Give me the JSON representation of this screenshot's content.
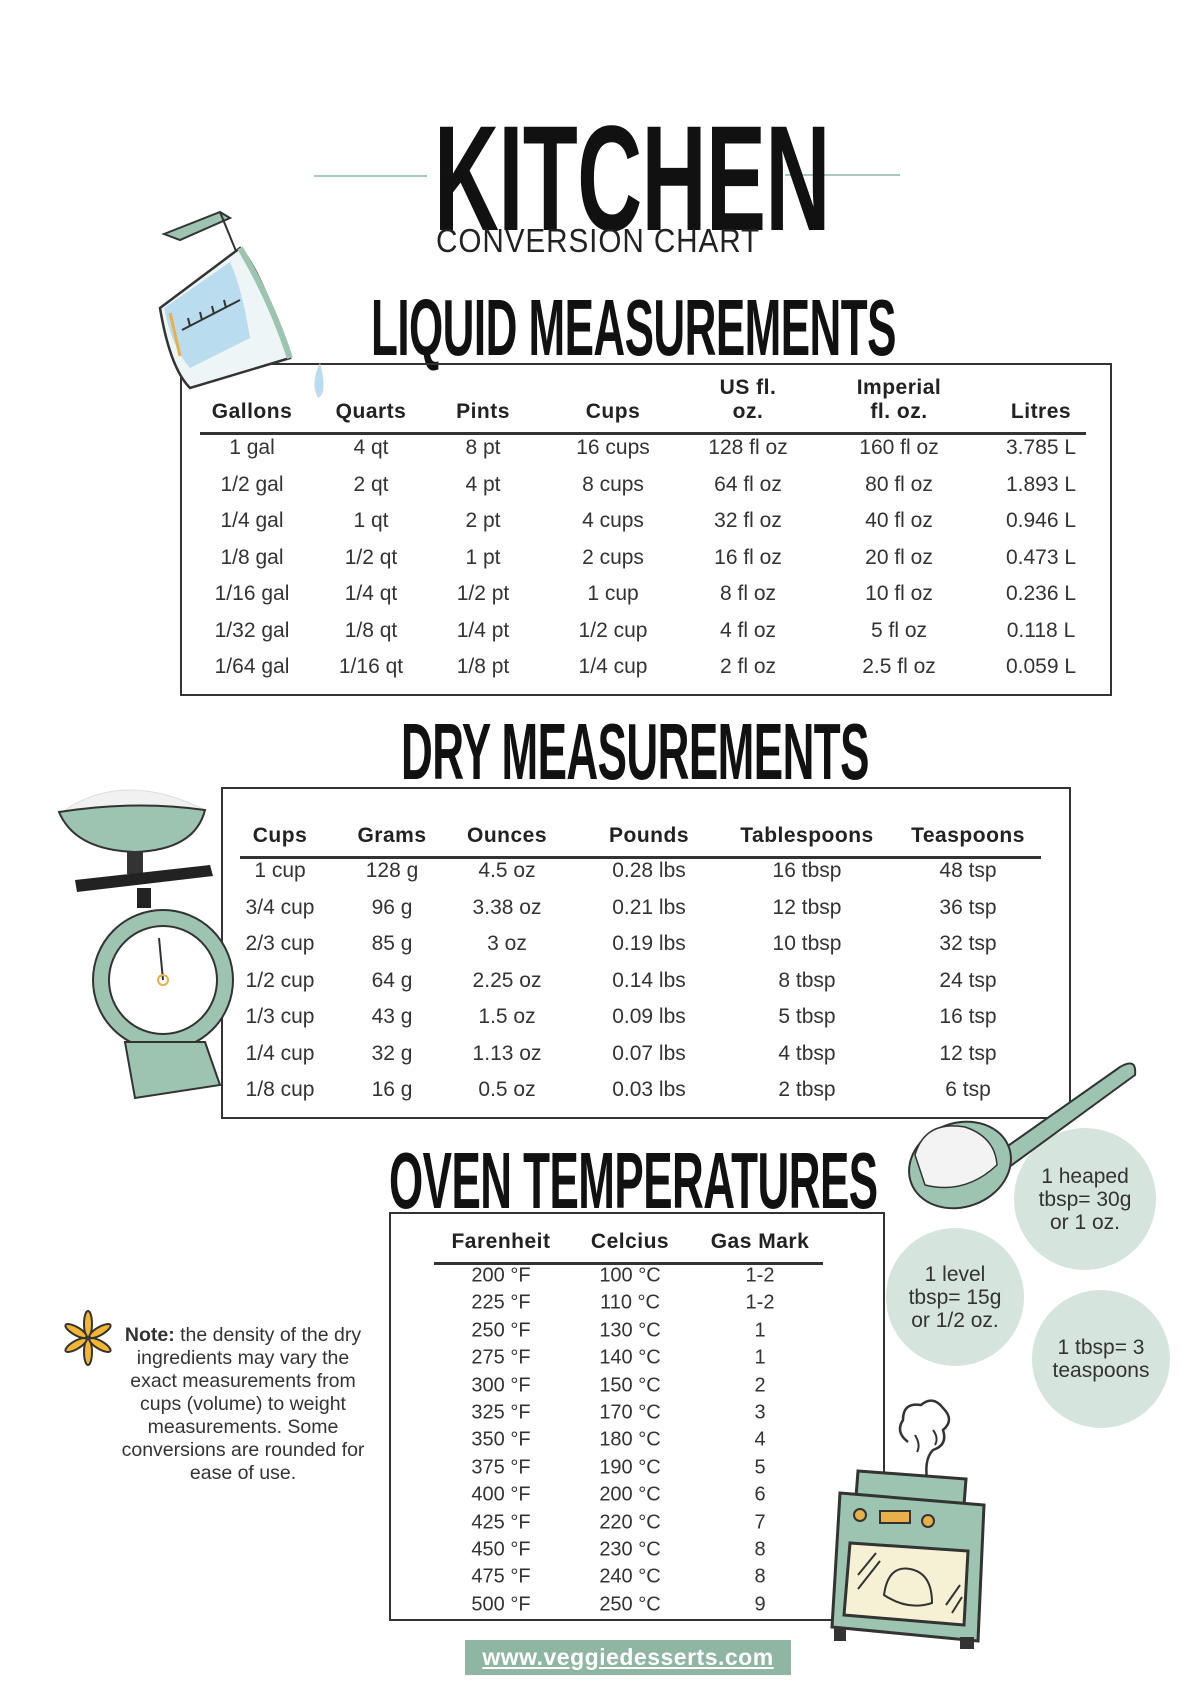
{
  "title": {
    "main": "KITCHEN",
    "sub": "CONVERSION CHART"
  },
  "liquid": {
    "heading": "LIQUID MEASUREMENTS",
    "columns": [
      "Gallons",
      "Quarts",
      "Pints",
      "Cups",
      "US fl.\noz.",
      "Imperial\nfl. oz.",
      "Litres"
    ],
    "rows": [
      [
        "1 gal",
        "4 qt",
        "8 pt",
        "16 cups",
        "128 fl oz",
        "160 fl oz",
        "3.785 L"
      ],
      [
        "1/2 gal",
        "2 qt",
        "4 pt",
        "8 cups",
        "64 fl oz",
        "80 fl oz",
        "1.893 L"
      ],
      [
        "1/4 gal",
        "1 qt",
        "2 pt",
        "4 cups",
        "32 fl oz",
        "40 fl oz",
        "0.946 L"
      ],
      [
        "1/8 gal",
        "1/2 qt",
        "1 pt",
        "2 cups",
        "16 fl oz",
        "20 fl oz",
        "0.473 L"
      ],
      [
        "1/16 gal",
        "1/4 qt",
        "1/2 pt",
        "1 cup",
        "8 fl oz",
        "10 fl oz",
        "0.236 L"
      ],
      [
        "1/32 gal",
        "1/8 qt",
        "1/4 pt",
        "1/2 cup",
        "4 fl oz",
        "5 fl oz",
        "0.118 L"
      ],
      [
        "1/64 gal",
        "1/16 qt",
        "1/8 pt",
        "1/4 cup",
        "2 fl oz",
        "2.5 fl oz",
        "0.059 L"
      ]
    ]
  },
  "dry": {
    "heading": "DRY MEASUREMENTS",
    "columns": [
      "Cups",
      "Grams",
      "Ounces",
      "Pounds",
      "Tablespoons",
      "Teaspoons"
    ],
    "rows": [
      [
        "1 cup",
        "128 g",
        "4.5 oz",
        "0.28 lbs",
        "16 tbsp",
        "48 tsp"
      ],
      [
        "3/4 cup",
        "96 g",
        "3.38 oz",
        "0.21 lbs",
        "12 tbsp",
        "36 tsp"
      ],
      [
        "2/3 cup",
        "85 g",
        "3 oz",
        "0.19 lbs",
        "10 tbsp",
        "32 tsp"
      ],
      [
        "1/2 cup",
        "64 g",
        "2.25 oz",
        "0.14 lbs",
        "8 tbsp",
        "24 tsp"
      ],
      [
        "1/3 cup",
        "43 g",
        "1.5 oz",
        "0.09 lbs",
        "5 tbsp",
        "16 tsp"
      ],
      [
        "1/4 cup",
        "32 g",
        "1.13 oz",
        "0.07 lbs",
        "4 tbsp",
        "12 tsp"
      ],
      [
        "1/8 cup",
        "16 g",
        "0.5 oz",
        "0.03 lbs",
        "2 tbsp",
        "6 tsp"
      ]
    ]
  },
  "oven": {
    "heading": "OVEN TEMPERATURES",
    "columns": [
      "Farenheit",
      "Celcius",
      "Gas Mark"
    ],
    "rows": [
      [
        "200 °F",
        "100 °C",
        "1-2"
      ],
      [
        "225 °F",
        "110 °C",
        "1-2"
      ],
      [
        "250 °F",
        "130 °C",
        "1"
      ],
      [
        "275 °F",
        "140 °C",
        "1"
      ],
      [
        "300 °F",
        "150 °C",
        "2"
      ],
      [
        "325 °F",
        "170 °C",
        "3"
      ],
      [
        "350 °F",
        "180 °C",
        "4"
      ],
      [
        "375 °F",
        "190 °C",
        "5"
      ],
      [
        "400 °F",
        "200 °C",
        "6"
      ],
      [
        "425 °F",
        "220 °C",
        "7"
      ],
      [
        "450 °F",
        "230 °C",
        "8"
      ],
      [
        "475 °F",
        "240 °C",
        "8"
      ],
      [
        "500 °F",
        "250 °C",
        "9"
      ]
    ]
  },
  "note": {
    "label": "Note:",
    "text": " the density of the dry ingredients may vary the exact measurements from cups (volume) to weight measurements. Some conversions are rounded for ease of use."
  },
  "tips": [
    "1 heaped tbsp= 30g or 1 oz.",
    "1 level tbsp= 15g or 1/2 oz.",
    "1 tbsp= 3 teaspoons"
  ],
  "website": "www.veggiedesserts.com",
  "colors": {
    "accent": "#8fb5a3",
    "circle": "#d6e4de",
    "text": "#111111",
    "asterisk": "#f2b632"
  }
}
